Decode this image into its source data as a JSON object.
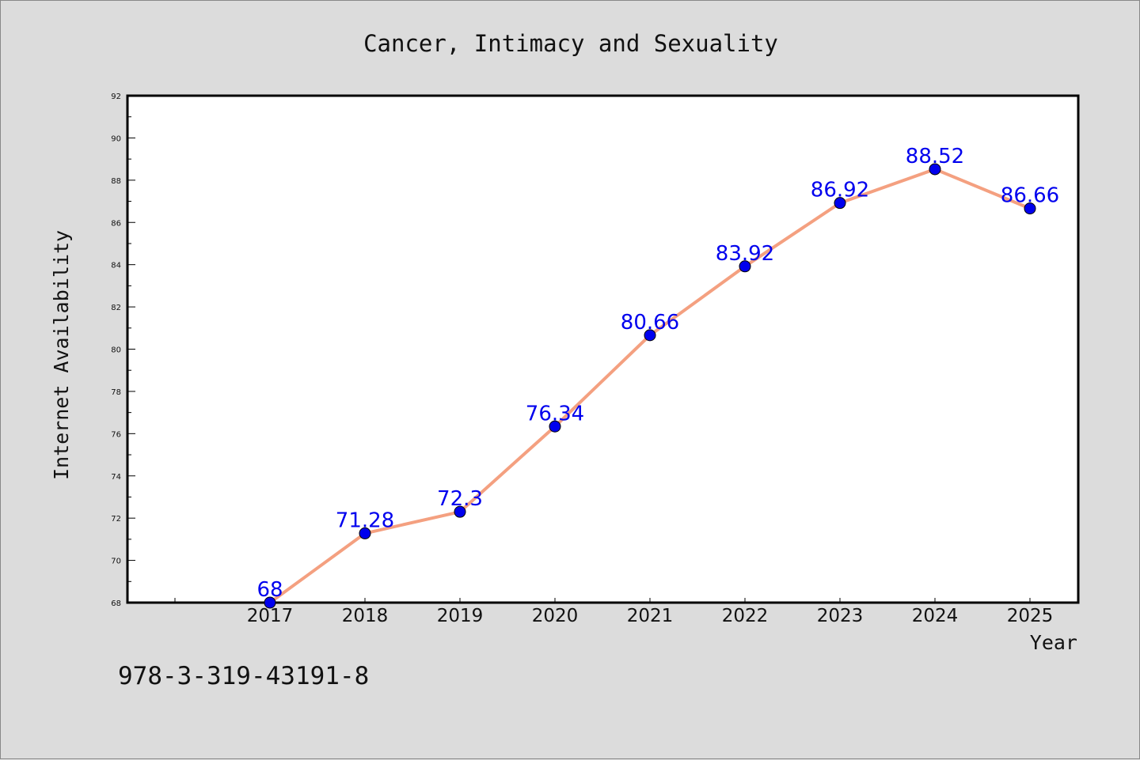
{
  "chart_data": {
    "type": "line",
    "title": "Cancer, Intimacy and Sexuality",
    "xlabel": "Year",
    "ylabel": "Internet Availability",
    "x": [
      "2017",
      "2018",
      "2019",
      "2020",
      "2021",
      "2022",
      "2023",
      "2024",
      "2025"
    ],
    "series": [
      {
        "values": [
          68,
          71.28,
          72.3,
          76.34,
          80.66,
          83.92,
          86.92,
          88.52,
          86.66
        ],
        "data_labels": [
          "68",
          "71.28",
          "72.3",
          "76.34",
          "80.66",
          "83.92",
          "86.92",
          "88.52",
          "86.66"
        ]
      }
    ],
    "ylim": [
      68,
      92
    ],
    "yticks": [
      "68",
      "70",
      "72",
      "74",
      "76",
      "78",
      "80",
      "82",
      "84",
      "86",
      "88",
      "90",
      "92"
    ],
    "grid": false,
    "line_color": "#f4a080",
    "marker_color": "#0000ee",
    "label_color": "#0000ee",
    "background": "#dcdcdc",
    "plot_background": "#ffffff"
  },
  "footer": {
    "isbn": "978-3-319-43191-8"
  }
}
